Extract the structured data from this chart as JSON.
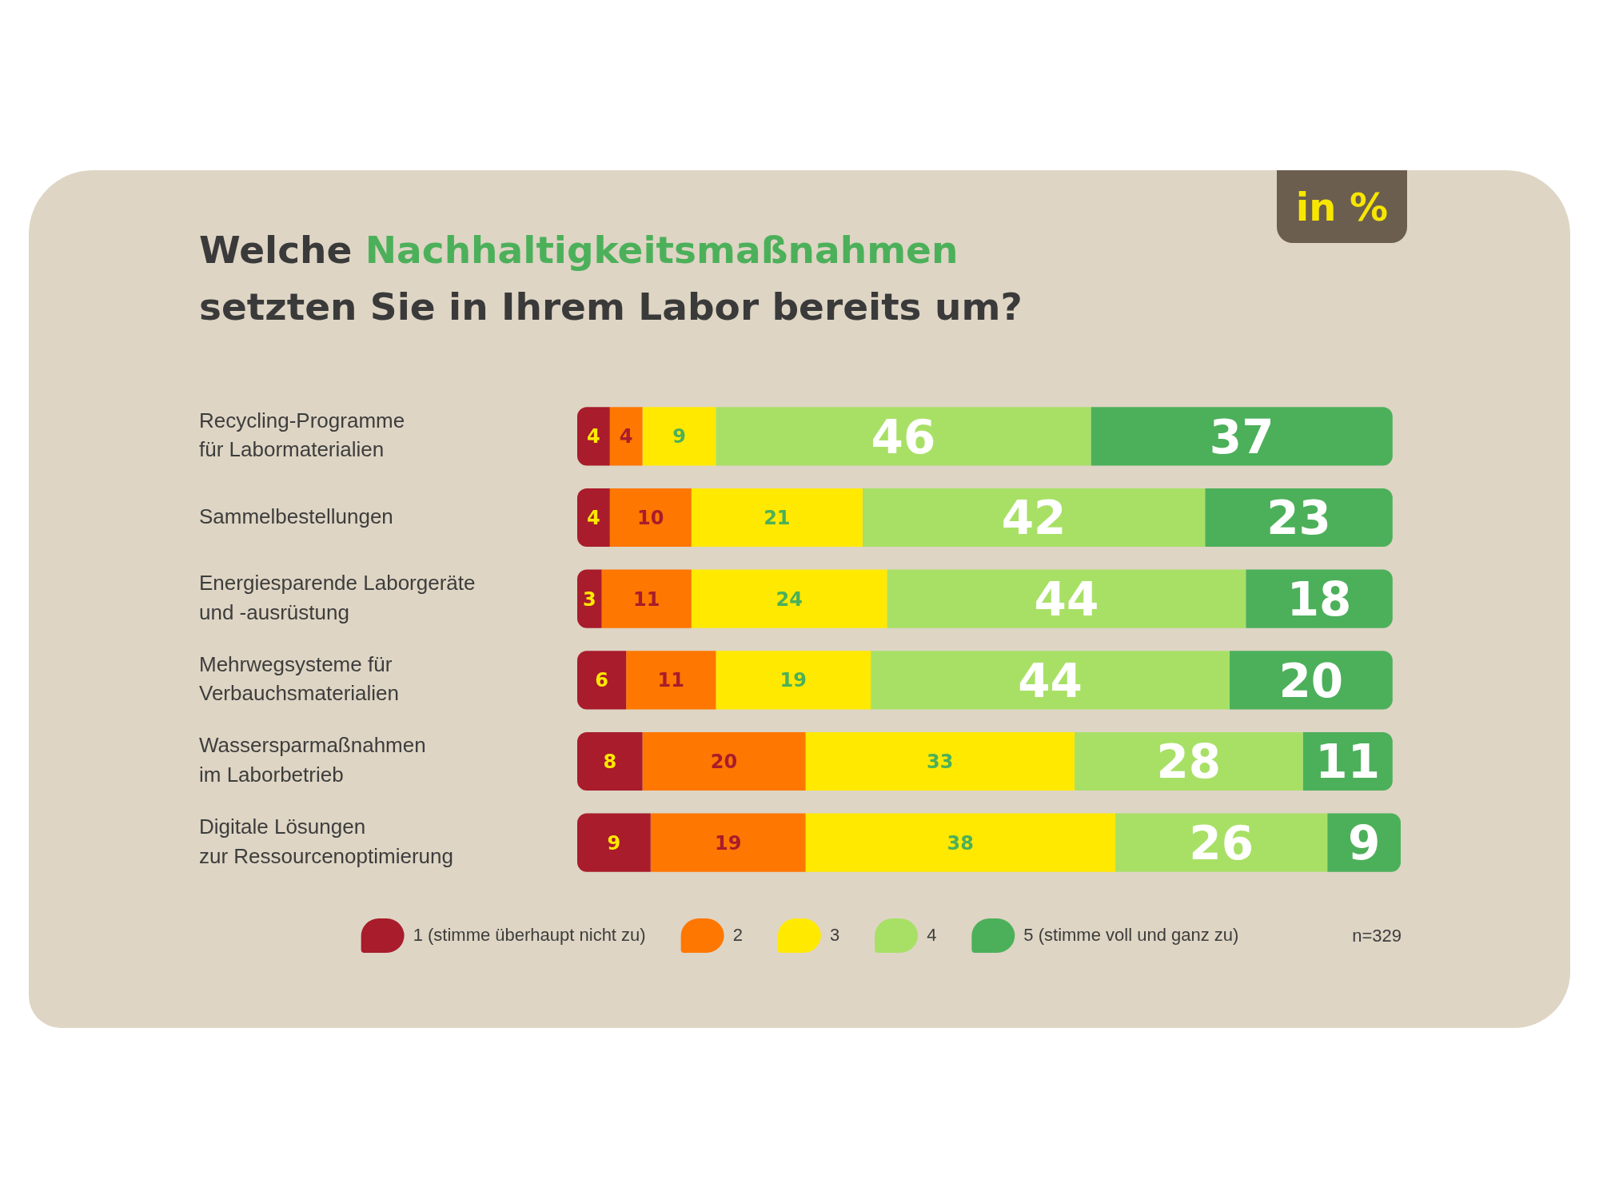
{
  "chart_data": {
    "type": "bar",
    "orientation": "horizontal",
    "stacked": true,
    "title": "Welche Nachhaltigkeitsmaßnahmen setzten Sie in Ihrem Labor bereits um?",
    "subtitle": "in %",
    "categories": [
      "Recycling-Programme\nfür Labormaterialien",
      "Sammelbestellungen",
      "Energiesparende Laborgeräte\nund -ausrüstung",
      "Mehrwegsysteme für\nVerbauchsmaterialien",
      "Wassersparmaßnahmen\nim Laborbetrieb",
      "Digitale Lösungen\nzur Ressourcenoptimierung"
    ],
    "series": [
      {
        "name": "1 (stimme überhaupt nicht zu)",
        "color": "#a81c2c",
        "values": [
          4,
          4,
          3,
          6,
          8,
          9
        ]
      },
      {
        "name": "2",
        "color": "#fe7700",
        "values": [
          4,
          10,
          11,
          11,
          20,
          19
        ]
      },
      {
        "name": "3",
        "color": "#ffe900",
        "values": [
          9,
          21,
          24,
          19,
          33,
          38
        ]
      },
      {
        "name": "4",
        "color": "#a8e066",
        "values": [
          46,
          42,
          44,
          44,
          28,
          26
        ]
      },
      {
        "name": "5 (stimme voll und ganz zu)",
        "color": "#4cb05a",
        "values": [
          37,
          23,
          18,
          20,
          11,
          9
        ]
      }
    ],
    "xlim": [
      0,
      101
    ],
    "data_labels": true,
    "legend": "bottom",
    "tick_labels": "y",
    "annotations": [
      "n=329"
    ]
  }
}
